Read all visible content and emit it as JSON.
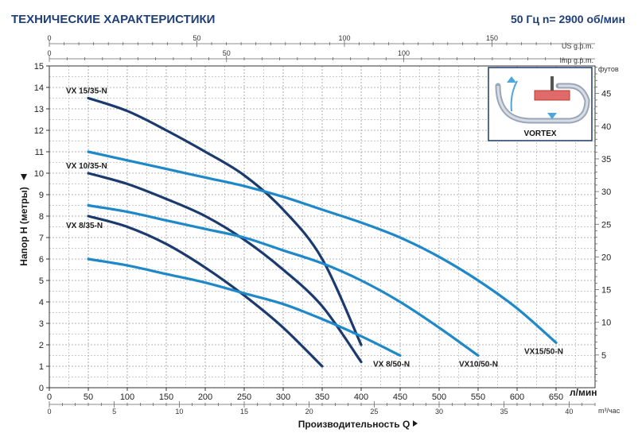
{
  "chart_data": {
    "type": "line",
    "title": "ТЕХНИЧЕСКИЕ ХАРАКТЕРИСТИКИ",
    "subtitle": "50 Гц  n= 2900 об/мин",
    "xlabel": "Производительность Q",
    "ylabel": "Напор H (метры)",
    "x_unit": "л/мин",
    "xlim": [
      0,
      700
    ],
    "ylim": [
      0,
      15
    ],
    "x_ticks": [
      0,
      50,
      100,
      150,
      200,
      250,
      300,
      350,
      400,
      450,
      500,
      550,
      600,
      650
    ],
    "y_ticks": [
      0,
      1,
      2,
      3,
      4,
      5,
      6,
      7,
      8,
      9,
      10,
      11,
      12,
      13,
      14,
      15
    ],
    "grid": true,
    "secondary_axes": {
      "us_gpm": {
        "label": "US g.p.m.",
        "ticks": [
          0,
          50,
          100,
          150
        ],
        "per_lpm": 0.264172
      },
      "imp_gpm": {
        "label": "Imp g.p.m.",
        "ticks": [
          0,
          50,
          100
        ],
        "per_lpm": 0.219969
      },
      "m3h": {
        "label": "m³/час",
        "ticks": [
          0,
          5,
          10,
          15,
          20,
          25,
          30,
          35,
          40
        ],
        "per_lpm": 0.06
      },
      "feet": {
        "label": "футов",
        "ticks": [
          5,
          10,
          15,
          20,
          25,
          30,
          35,
          40,
          45
        ],
        "per_m": 3.28084
      }
    },
    "series": [
      {
        "name": "VX 15/35-N",
        "color": "#1b3a6e",
        "x": [
          50,
          100,
          150,
          200,
          250,
          300,
          350,
          400
        ],
        "y": [
          13.5,
          12.9,
          12.0,
          11.0,
          9.9,
          8.3,
          6.0,
          2.0
        ]
      },
      {
        "name": "VX 10/35-N",
        "color": "#1b3a6e",
        "x": [
          50,
          100,
          150,
          200,
          250,
          300,
          350,
          400
        ],
        "y": [
          10.0,
          9.5,
          8.8,
          8.0,
          6.9,
          5.5,
          3.8,
          1.2
        ]
      },
      {
        "name": "VX 8/35-N",
        "color": "#1b3a6e",
        "x": [
          50,
          100,
          150,
          200,
          250,
          300,
          350
        ],
        "y": [
          8.0,
          7.5,
          6.7,
          5.6,
          4.3,
          2.8,
          1.0
        ]
      },
      {
        "name": "VX15/50-N",
        "color": "#1e88c8",
        "x": [
          50,
          100,
          150,
          200,
          250,
          300,
          350,
          400,
          450,
          500,
          550,
          600,
          650
        ],
        "y": [
          11.0,
          10.6,
          10.2,
          9.8,
          9.4,
          8.9,
          8.3,
          7.7,
          7.0,
          6.1,
          5.0,
          3.7,
          2.1
        ]
      },
      {
        "name": "VX10/50-N",
        "color": "#1e88c8",
        "x": [
          50,
          100,
          150,
          200,
          250,
          300,
          350,
          400,
          450,
          500,
          550
        ],
        "y": [
          8.5,
          8.2,
          7.8,
          7.4,
          7.0,
          6.4,
          5.8,
          5.0,
          4.0,
          2.8,
          1.5
        ]
      },
      {
        "name": "VX 8/50-N",
        "color": "#1e88c8",
        "x": [
          50,
          100,
          150,
          200,
          250,
          300,
          350,
          400,
          450
        ],
        "y": [
          6.0,
          5.7,
          5.3,
          4.9,
          4.4,
          3.9,
          3.2,
          2.4,
          1.5
        ]
      }
    ]
  },
  "inset": {
    "label": "VORTEX"
  }
}
